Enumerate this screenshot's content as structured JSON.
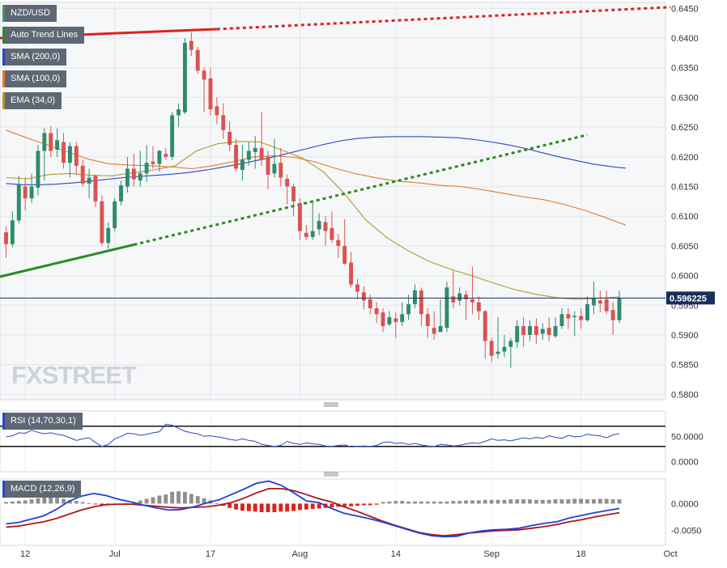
{
  "chart_data": [
    {
      "type": "candlestick",
      "symbol": "NZD/USD",
      "last_price": "0.596225",
      "y_ticks": [
        "0.6450",
        "0.6400",
        "0.6350",
        "0.6300",
        "0.6250",
        "0.6200",
        "0.6150",
        "0.6100",
        "0.6050",
        "0.6000",
        "0.5950",
        "0.5900",
        "0.5850",
        "0.5800"
      ],
      "ylim": [
        0.5791,
        0.646
      ],
      "x_ticks": [
        "12",
        "Jul",
        "17",
        "Aug",
        "14",
        "Sep",
        "18",
        "Oct"
      ],
      "legend": [
        {
          "label": "NZD/USD",
          "color": "#4a8f6c"
        },
        {
          "label": "Auto Trend Lines",
          "color": "#2c8a2c"
        },
        {
          "label": "SMA (200,0)",
          "color": "#2b45c4"
        },
        {
          "label": "SMA (100,0)",
          "color": "#e67a2e"
        },
        {
          "label": "EMA (34,0)",
          "color": "#b09a2a"
        }
      ],
      "watermark": "FXSTREET",
      "colors": {
        "up": "#2e8b6e",
        "down": "#d9534f",
        "sma200": "#2b45c4",
        "sma100": "#e67a2e",
        "ema34": "#b09a2a",
        "trend_up": "#2a8a22",
        "trend_down": "#e02020",
        "last_line": "#1c2f5c"
      },
      "candles": [
        [
          0.6073,
          0.6053,
          0.6083,
          0.603
        ],
        [
          0.6053,
          0.6093,
          0.6108,
          0.6048
        ],
        [
          0.6093,
          0.6153,
          0.6168,
          0.6088
        ],
        [
          0.615,
          0.613,
          0.6165,
          0.611
        ],
        [
          0.613,
          0.615,
          0.6172,
          0.6122
        ],
        [
          0.6148,
          0.621,
          0.622,
          0.6135
        ],
        [
          0.621,
          0.624,
          0.6248,
          0.616
        ],
        [
          0.624,
          0.621,
          0.6252,
          0.62
        ],
        [
          0.6212,
          0.6228,
          0.6248,
          0.62
        ],
        [
          0.6225,
          0.619,
          0.624,
          0.618
        ],
        [
          0.619,
          0.6218,
          0.6225,
          0.6165
        ],
        [
          0.6218,
          0.6185,
          0.6225,
          0.617
        ],
        [
          0.6185,
          0.6155,
          0.6195,
          0.615
        ],
        [
          0.6155,
          0.6165,
          0.618,
          0.613
        ],
        [
          0.6168,
          0.6125,
          0.617,
          0.6115
        ],
        [
          0.6125,
          0.6055,
          0.6135,
          0.605
        ],
        [
          0.6055,
          0.608,
          0.609,
          0.6045
        ],
        [
          0.608,
          0.6125,
          0.613,
          0.6075
        ],
        [
          0.6125,
          0.6152,
          0.616,
          0.6118
        ],
        [
          0.615,
          0.618,
          0.62,
          0.614
        ],
        [
          0.618,
          0.6162,
          0.6205,
          0.615
        ],
        [
          0.616,
          0.6172,
          0.621,
          0.615
        ],
        [
          0.6172,
          0.619,
          0.622,
          0.6158
        ],
        [
          0.6192,
          0.6188,
          0.6218,
          0.618
        ],
        [
          0.6188,
          0.621,
          0.6212,
          0.6175
        ],
        [
          0.6205,
          0.62,
          0.6215,
          0.6195
        ],
        [
          0.62,
          0.627,
          0.6275,
          0.6195
        ],
        [
          0.627,
          0.628,
          0.629,
          0.625
        ],
        [
          0.6275,
          0.6392,
          0.64,
          0.6272
        ],
        [
          0.6395,
          0.638,
          0.641,
          0.637
        ],
        [
          0.638,
          0.6345,
          0.6385,
          0.634
        ],
        [
          0.6345,
          0.633,
          0.635,
          0.6275
        ],
        [
          0.6332,
          0.628,
          0.635,
          0.627
        ],
        [
          0.6285,
          0.627,
          0.63,
          0.6255
        ],
        [
          0.627,
          0.6245,
          0.629,
          0.623
        ],
        [
          0.6242,
          0.622,
          0.626,
          0.621
        ],
        [
          0.622,
          0.618,
          0.623,
          0.6175
        ],
        [
          0.6178,
          0.6195,
          0.622,
          0.616
        ],
        [
          0.6195,
          0.621,
          0.6225,
          0.6185
        ],
        [
          0.6208,
          0.6215,
          0.6235,
          0.618
        ],
        [
          0.6215,
          0.6195,
          0.6275,
          0.6185
        ],
        [
          0.62,
          0.617,
          0.621,
          0.6145
        ],
        [
          0.6172,
          0.6188,
          0.623,
          0.6165
        ],
        [
          0.619,
          0.6165,
          0.6215,
          0.615
        ],
        [
          0.6163,
          0.615,
          0.617,
          0.612
        ],
        [
          0.615,
          0.6125,
          0.6155,
          0.61
        ],
        [
          0.6122,
          0.6075,
          0.613,
          0.606
        ],
        [
          0.6072,
          0.6065,
          0.6085,
          0.606
        ],
        [
          0.6065,
          0.6075,
          0.6125,
          0.606
        ],
        [
          0.6078,
          0.6092,
          0.6105,
          0.6068
        ],
        [
          0.609,
          0.6075,
          0.61,
          0.605
        ],
        [
          0.608,
          0.606,
          0.6108,
          0.6055
        ],
        [
          0.606,
          0.605,
          0.607,
          0.603
        ],
        [
          0.605,
          0.602,
          0.6095,
          0.6018
        ],
        [
          0.6022,
          0.5985,
          0.604,
          0.598
        ],
        [
          0.5985,
          0.5973,
          0.5995,
          0.596
        ],
        [
          0.5972,
          0.5958,
          0.5982,
          0.5943
        ],
        [
          0.596,
          0.5945,
          0.5968,
          0.5935
        ],
        [
          0.5945,
          0.5935,
          0.5955,
          0.592
        ],
        [
          0.5938,
          0.5915,
          0.5945,
          0.5905
        ],
        [
          0.5918,
          0.593,
          0.594,
          0.5915
        ],
        [
          0.5928,
          0.5922,
          0.5938,
          0.5895
        ],
        [
          0.5922,
          0.5935,
          0.5955,
          0.5915
        ],
        [
          0.5935,
          0.5952,
          0.5968,
          0.5925
        ],
        [
          0.5952,
          0.5975,
          0.5985,
          0.5945
        ],
        [
          0.5975,
          0.5935,
          0.598,
          0.5915
        ],
        [
          0.5935,
          0.5915,
          0.5945,
          0.5895
        ],
        [
          0.5912,
          0.5902,
          0.594,
          0.5892
        ],
        [
          0.5905,
          0.5915,
          0.596,
          0.5905
        ],
        [
          0.5912,
          0.598,
          0.599,
          0.5905
        ],
        [
          0.5965,
          0.5955,
          0.6008,
          0.5945
        ],
        [
          0.5958,
          0.597,
          0.598,
          0.595
        ],
        [
          0.5968,
          0.596,
          0.5975,
          0.5925
        ],
        [
          0.596,
          0.5955,
          0.6015,
          0.5935
        ],
        [
          0.5955,
          0.594,
          0.5965,
          0.5925
        ],
        [
          0.594,
          0.589,
          0.5942,
          0.586
        ],
        [
          0.589,
          0.5865,
          0.5895,
          0.5855
        ],
        [
          0.5868,
          0.5872,
          0.593,
          0.586
        ],
        [
          0.5872,
          0.588,
          0.59,
          0.5863
        ],
        [
          0.588,
          0.589,
          0.5895,
          0.5845
        ],
        [
          0.5888,
          0.5915,
          0.5925,
          0.5878
        ],
        [
          0.5915,
          0.59,
          0.593,
          0.588
        ],
        [
          0.59,
          0.5915,
          0.5925,
          0.589
        ],
        [
          0.5915,
          0.59,
          0.5928,
          0.5885
        ],
        [
          0.5902,
          0.591,
          0.592,
          0.5892
        ],
        [
          0.5912,
          0.59,
          0.593,
          0.589
        ],
        [
          0.5898,
          0.5915,
          0.593,
          0.5895
        ],
        [
          0.5915,
          0.5935,
          0.5945,
          0.591
        ],
        [
          0.5935,
          0.5928,
          0.5945,
          0.591
        ],
        [
          0.593,
          0.5932,
          0.594,
          0.5898
        ],
        [
          0.5932,
          0.5925,
          0.5945,
          0.591
        ],
        [
          0.5925,
          0.5952,
          0.5965,
          0.5922
        ],
        [
          0.595,
          0.5962,
          0.599,
          0.5935
        ],
        [
          0.5958,
          0.5953,
          0.5975,
          0.5938
        ],
        [
          0.596,
          0.594,
          0.5975,
          0.5935
        ],
        [
          0.5942,
          0.5925,
          0.5955,
          0.59
        ],
        [
          0.5925,
          0.5962,
          0.5975,
          0.592
        ]
      ],
      "sma200": [
        0.6155,
        0.6153,
        0.6153,
        0.6154,
        0.6156,
        0.6159,
        0.6162,
        0.6165,
        0.6167,
        0.6169,
        0.6171,
        0.6174,
        0.6178,
        0.6183,
        0.6188,
        0.6194,
        0.62,
        0.6207,
        0.6214,
        0.6221,
        0.6227,
        0.6231,
        0.6233,
        0.6234,
        0.6234,
        0.6234,
        0.6233,
        0.6232,
        0.6229,
        0.6225,
        0.622,
        0.6214,
        0.6207,
        0.62,
        0.6194,
        0.6188,
        0.6184,
        0.6181
      ],
      "sma100": [
        0.6245,
        0.6232,
        0.622,
        0.6208,
        0.6196,
        0.6188,
        0.6186,
        0.6185,
        0.6183,
        0.618,
        0.6185,
        0.6192,
        0.62,
        0.6202,
        0.6199,
        0.6191,
        0.618,
        0.6171,
        0.6164,
        0.6159,
        0.6156,
        0.6152,
        0.615,
        0.6145,
        0.6139,
        0.6133,
        0.6128,
        0.612,
        0.611,
        0.6098,
        0.6085
      ],
      "ema34": [
        0.6165,
        0.6163,
        0.617,
        0.6172,
        0.6169,
        0.6168,
        0.6173,
        0.6178,
        0.6185,
        0.621,
        0.6222,
        0.6226,
        0.6225,
        0.6212,
        0.6198,
        0.6175,
        0.6138,
        0.6094,
        0.6064,
        0.6042,
        0.6024,
        0.6011,
        0.6,
        0.5988,
        0.5977,
        0.5969,
        0.5963,
        0.596,
        0.5962,
        0.5964
      ],
      "trend_support": {
        "start": [
          0,
          0.5998
        ],
        "solid_end": [
          20,
          0.6052
        ],
        "dashed_end": [
          91,
          0.6237
        ]
      },
      "trend_resistance": {
        "start": [
          0,
          0.64
        ],
        "solid_end": [
          33,
          0.6415
        ],
        "dashed_end": [
          104,
          0.6452
        ]
      }
    },
    {
      "type": "line",
      "label": "RSI (14,70,30,1)",
      "y_ticks": [
        "50.0000",
        "0.0000"
      ],
      "levels": [
        70,
        30
      ],
      "ylim": [
        -20,
        100
      ],
      "values": [
        49,
        51,
        57,
        56,
        62,
        58,
        55,
        57,
        54,
        52,
        47,
        42,
        45,
        47,
        38,
        30,
        34,
        45,
        50,
        56,
        55,
        52,
        54,
        57,
        59,
        74,
        72,
        66,
        60,
        57,
        55,
        50,
        51,
        49,
        47,
        44,
        42,
        45,
        42,
        40,
        34,
        32,
        30,
        32,
        40,
        36,
        34,
        37,
        35,
        34,
        31,
        30,
        32,
        33,
        29,
        30,
        31,
        30,
        32,
        38,
        39,
        36,
        37,
        34,
        36,
        33,
        31,
        30,
        34,
        33,
        31,
        32,
        35,
        37,
        36,
        40,
        45,
        42,
        43,
        41,
        44,
        47,
        45,
        48,
        46,
        51,
        48,
        46,
        52,
        49,
        50,
        54,
        52,
        51,
        47,
        53,
        55
      ]
    },
    {
      "type": "bar",
      "label": "MACD (12,26,9)",
      "y_ticks": [
        "0.0000",
        "-0.0050"
      ],
      "ylim": [
        -0.0078,
        0.0046
      ],
      "macd": [
        -0.0038,
        -0.0035,
        -0.0029,
        -0.0023,
        -0.0011,
        0.0004,
        0.0014,
        0.0019,
        0.0015,
        0.0008,
        0.0003,
        -0.0003,
        -0.0008,
        -0.0012,
        -0.0011,
        -0.0006,
        0.0001,
        0.0007,
        0.0017,
        0.0027,
        0.0038,
        0.0042,
        0.0034,
        0.002,
        0.0005,
        0.0002,
        -0.0009,
        -0.0018,
        -0.0023,
        -0.0028,
        -0.0034,
        -0.0041,
        -0.0048,
        -0.0055,
        -0.006,
        -0.0062,
        -0.0061,
        -0.0055,
        -0.0051,
        -0.0049,
        -0.0048,
        -0.0046,
        -0.0041,
        -0.0037,
        -0.0034,
        -0.0027,
        -0.0022,
        -0.0017,
        -0.0013,
        -0.0009
      ],
      "signal": [
        -0.0044,
        -0.0042,
        -0.0038,
        -0.0034,
        -0.0028,
        -0.002,
        -0.0012,
        -0.0006,
        -0.0002,
        -0.0001,
        -0.0001,
        -0.0003,
        -0.0005,
        -0.0007,
        -0.0008,
        -0.0007,
        -0.0006,
        -0.0003,
        0.0002,
        0.001,
        0.002,
        0.0028,
        0.0028,
        0.0024,
        0.0017,
        0.0009,
        0.0003,
        -0.0006,
        -0.0014,
        -0.0023,
        -0.0032,
        -0.004,
        -0.0047,
        -0.0054,
        -0.0058,
        -0.006,
        -0.0058,
        -0.0055,
        -0.0053,
        -0.0051,
        -0.005,
        -0.0049,
        -0.0046,
        -0.0043,
        -0.0039,
        -0.0034,
        -0.003,
        -0.0025,
        -0.0021,
        -0.0017
      ],
      "histogram": [
        0.0003,
        0.0004,
        0.0005,
        0.0006,
        0.0008,
        0.001,
        0.0012,
        0.0013,
        0.0011,
        0.0009,
        0.0007,
        0.0005,
        0.0003,
        0.0001,
        -0.0001,
        -0.0003,
        -0.0003,
        -0.0002,
        -0.0001,
        0.0001,
        0.0003,
        0.0006,
        0.0009,
        0.0012,
        0.0015,
        0.0017,
        0.0022,
        0.0023,
        0.0022,
        0.0018,
        0.0014,
        0.001,
        0.0006,
        0.0001,
        -0.0004,
        -0.0008,
        -0.0011,
        -0.0013,
        -0.0014,
        -0.0015,
        -0.0016,
        -0.0016,
        -0.0016,
        -0.0015,
        -0.0015,
        -0.0014,
        -0.0012,
        -0.0011,
        -0.001,
        -0.0009,
        -0.0008,
        -0.0007,
        -0.0006,
        -0.0005,
        -0.0005,
        -0.0004,
        -0.0003,
        -0.0003,
        -0.0002,
        0.0003,
        0.0004,
        0.0005,
        0.0005,
        0.0004,
        0.0004,
        0.0004,
        0.0004,
        0.0004,
        0.0004,
        0.0004,
        0.0005,
        0.0005,
        0.0006,
        0.0006,
        0.0006,
        0.0007,
        0.0007,
        0.0007,
        0.0007,
        0.0008,
        0.0008,
        0.0008,
        0.0008,
        0.0007,
        0.0007,
        0.0007,
        0.0008,
        0.0008,
        0.0008,
        0.0009,
        0.0009,
        0.0008,
        0.0008,
        0.0009,
        0.0009,
        0.0008,
        0.0008
      ]
    }
  ]
}
